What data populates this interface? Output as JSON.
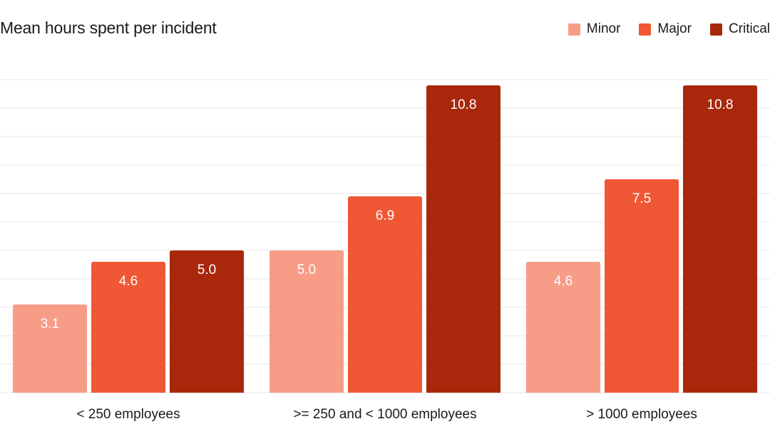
{
  "chart_data": {
    "type": "bar",
    "title": "Mean hours spent per incident",
    "categories": [
      "< 250 employees",
      ">= 250 and < 1000 employees",
      "> 1000 employees"
    ],
    "series": [
      {
        "name": "Minor",
        "color": "#f79c87",
        "label_color": "#ffffff",
        "values": [
          3.1,
          5.0,
          4.6
        ]
      },
      {
        "name": "Major",
        "color": "#f05735",
        "label_color": "#ffffff",
        "values": [
          4.6,
          6.9,
          7.5
        ]
      },
      {
        "name": "Critical",
        "color": "#a9280b",
        "label_color": "#ffffff",
        "values": [
          5.0,
          10.8,
          10.8
        ]
      }
    ],
    "ylim": [
      0,
      11
    ],
    "grid": true,
    "legend_position": "top-right",
    "xlabel": "",
    "ylabel": ""
  }
}
